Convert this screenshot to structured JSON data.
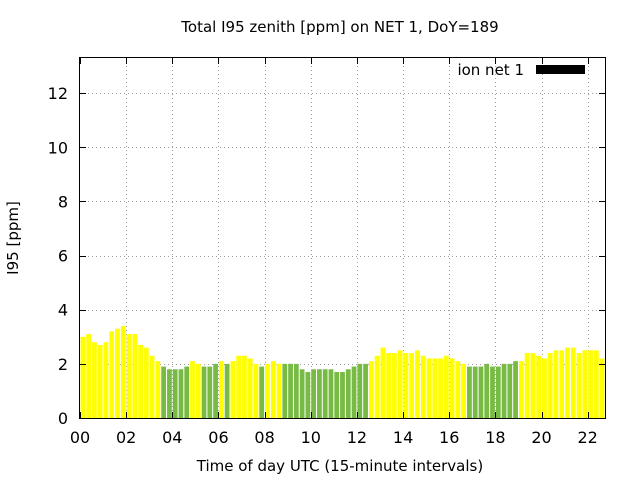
{
  "chart_data": {
    "type": "bar",
    "title": "Total I95 zenith [ppm] on NET 1, DoY=189",
    "xlabel": "Time of day UTC (15-minute intervals)",
    "ylabel": "I95 [ppm]",
    "xlim": [
      0,
      22.75
    ],
    "ylim": [
      0,
      13.3
    ],
    "x_ticks": [
      {
        "value": 0,
        "label": "00"
      },
      {
        "value": 2,
        "label": "02"
      },
      {
        "value": 4,
        "label": "04"
      },
      {
        "value": 6,
        "label": "06"
      },
      {
        "value": 8,
        "label": "08"
      },
      {
        "value": 10,
        "label": "10"
      },
      {
        "value": 12,
        "label": "12"
      },
      {
        "value": 14,
        "label": "14"
      },
      {
        "value": 16,
        "label": "16"
      },
      {
        "value": 18,
        "label": "18"
      },
      {
        "value": 20,
        "label": "20"
      },
      {
        "value": 22,
        "label": "22"
      }
    ],
    "y_ticks": [
      {
        "value": 0,
        "label": "0"
      },
      {
        "value": 2,
        "label": "2"
      },
      {
        "value": 4,
        "label": "4"
      },
      {
        "value": 6,
        "label": "6"
      },
      {
        "value": 8,
        "label": "8"
      },
      {
        "value": 10,
        "label": "10"
      },
      {
        "value": 12,
        "label": "12"
      }
    ],
    "grid": true,
    "legend": {
      "label": "ion net 1",
      "position": "top-right",
      "color": "#000000"
    },
    "colors": {
      "high": "#ffff00",
      "low": "#77bb44"
    },
    "interval_hours": 0.25,
    "values": [
      3.0,
      3.1,
      2.8,
      2.7,
      2.8,
      3.2,
      3.3,
      3.4,
      3.1,
      3.1,
      2.7,
      2.6,
      2.3,
      2.1,
      1.9,
      1.8,
      1.8,
      1.8,
      1.9,
      2.1,
      2.0,
      1.9,
      1.9,
      2.0,
      2.1,
      2.0,
      2.1,
      2.3,
      2.3,
      2.2,
      2.0,
      1.9,
      2.0,
      2.1,
      2.0,
      2.0,
      2.0,
      2.0,
      1.8,
      1.7,
      1.8,
      1.8,
      1.8,
      1.8,
      1.7,
      1.7,
      1.8,
      1.9,
      2.0,
      2.0,
      2.1,
      2.3,
      2.6,
      2.4,
      2.4,
      2.5,
      2.4,
      2.4,
      2.5,
      2.3,
      2.2,
      2.2,
      2.2,
      2.3,
      2.2,
      2.1,
      2.0,
      1.9,
      1.9,
      1.9,
      2.0,
      1.9,
      1.9,
      2.0,
      2.0,
      2.1,
      2.1,
      2.4,
      2.4,
      2.3,
      2.2,
      2.4,
      2.5,
      2.5,
      2.6,
      2.6,
      2.4,
      2.5,
      2.5,
      2.5,
      2.2
    ],
    "value_colors": [
      "high",
      "high",
      "high",
      "high",
      "high",
      "high",
      "high",
      "high",
      "high",
      "high",
      "high",
      "high",
      "high",
      "high",
      "low",
      "low",
      "low",
      "low",
      "low",
      "high",
      "high",
      "low",
      "low",
      "low",
      "high",
      "low",
      "high",
      "high",
      "high",
      "high",
      "high",
      "low",
      "high",
      "high",
      "high",
      "low",
      "low",
      "low",
      "low",
      "low",
      "low",
      "low",
      "low",
      "low",
      "low",
      "low",
      "low",
      "low",
      "low",
      "low",
      "high",
      "high",
      "high",
      "high",
      "high",
      "high",
      "high",
      "high",
      "high",
      "high",
      "high",
      "high",
      "high",
      "high",
      "high",
      "high",
      "high",
      "low",
      "low",
      "low",
      "low",
      "low",
      "low",
      "low",
      "low",
      "low",
      "high",
      "high",
      "high",
      "high",
      "high",
      "high",
      "high",
      "high",
      "high",
      "high",
      "high",
      "high",
      "high",
      "high",
      "high"
    ]
  }
}
